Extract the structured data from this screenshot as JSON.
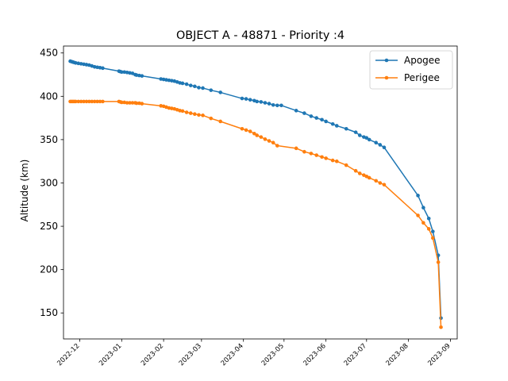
{
  "chart_data": {
    "type": "line",
    "title": "OBJECT A - 48871 - Priority :4",
    "xlabel": "",
    "ylabel": "Altitude (km)",
    "xlim": [
      "2022-11-19",
      "2023-09-06"
    ],
    "ylim": [
      120,
      458
    ],
    "x_ticks": [
      "2022-12",
      "2023-01",
      "2023-02",
      "2023-03",
      "2023-04",
      "2023-05",
      "2023-06",
      "2023-07",
      "2023-08",
      "2023-09"
    ],
    "y_ticks": [
      150,
      200,
      250,
      300,
      350,
      400,
      450
    ],
    "grid": false,
    "legend_position": "top-right",
    "series": [
      {
        "name": "Apogee",
        "color": "#1f77b4",
        "points": [
          [
            "2022-11-24",
            440.5
          ],
          [
            "2022-11-25",
            440
          ],
          [
            "2022-11-26",
            439.5
          ],
          [
            "2022-11-27",
            439
          ],
          [
            "2022-11-28",
            438.5
          ],
          [
            "2022-11-30",
            438
          ],
          [
            "2022-12-02",
            437.5
          ],
          [
            "2022-12-04",
            437
          ],
          [
            "2022-12-06",
            436.5
          ],
          [
            "2022-12-08",
            436
          ],
          [
            "2022-12-10",
            435
          ],
          [
            "2022-12-12",
            434
          ],
          [
            "2022-12-14",
            433.5
          ],
          [
            "2022-12-16",
            433
          ],
          [
            "2022-12-18",
            432.5
          ],
          [
            "2022-12-30",
            429
          ],
          [
            "2022-12-31",
            428.5
          ],
          [
            "2023-01-01",
            428
          ],
          [
            "2023-01-03",
            428
          ],
          [
            "2023-01-05",
            427.5
          ],
          [
            "2023-01-07",
            427
          ],
          [
            "2023-01-09",
            426.5
          ],
          [
            "2023-01-11",
            425
          ],
          [
            "2023-01-12",
            424.5
          ],
          [
            "2023-01-14",
            424
          ],
          [
            "2023-01-16",
            423.5
          ],
          [
            "2023-01-30",
            420
          ],
          [
            "2023-02-01",
            419.5
          ],
          [
            "2023-02-03",
            419
          ],
          [
            "2023-02-05",
            418.5
          ],
          [
            "2023-02-07",
            418
          ],
          [
            "2023-02-09",
            417.5
          ],
          [
            "2023-02-11",
            416.5
          ],
          [
            "2023-02-13",
            415.5
          ],
          [
            "2023-02-15",
            415
          ],
          [
            "2023-02-18",
            414
          ],
          [
            "2023-02-21",
            412.5
          ],
          [
            "2023-02-24",
            411.5
          ],
          [
            "2023-02-27",
            410
          ],
          [
            "2023-03-02",
            409.5
          ],
          [
            "2023-03-08",
            407
          ],
          [
            "2023-03-15",
            404.5
          ],
          [
            "2023-03-31",
            397.5
          ],
          [
            "2023-04-03",
            397
          ],
          [
            "2023-04-06",
            396
          ],
          [
            "2023-04-09",
            395
          ],
          [
            "2023-04-11",
            394
          ],
          [
            "2023-04-14",
            393.5
          ],
          [
            "2023-04-17",
            392.5
          ],
          [
            "2023-04-20",
            391.5
          ],
          [
            "2023-04-23",
            390
          ],
          [
            "2023-04-26",
            389.5
          ],
          [
            "2023-04-29",
            389.5
          ],
          [
            "2023-05-10",
            383.5
          ],
          [
            "2023-05-16",
            380.5
          ],
          [
            "2023-05-21",
            377
          ],
          [
            "2023-05-25",
            375
          ],
          [
            "2023-05-29",
            373
          ],
          [
            "2023-06-01",
            371
          ],
          [
            "2023-06-06",
            368
          ],
          [
            "2023-06-09",
            366
          ],
          [
            "2023-06-16",
            362.5
          ],
          [
            "2023-06-23",
            358.5
          ],
          [
            "2023-06-26",
            355
          ],
          [
            "2023-06-29",
            353
          ],
          [
            "2023-07-01",
            352
          ],
          [
            "2023-07-03",
            350
          ],
          [
            "2023-07-08",
            346.5
          ],
          [
            "2023-07-11",
            344
          ],
          [
            "2023-07-14",
            341
          ],
          [
            "2023-08-08",
            285.5
          ],
          [
            "2023-08-12",
            271.5
          ],
          [
            "2023-08-16",
            259
          ],
          [
            "2023-08-19",
            244
          ],
          [
            "2023-08-23",
            216.5
          ],
          [
            "2023-08-25",
            144
          ]
        ]
      },
      {
        "name": "Perigee",
        "color": "#ff7f0e",
        "points": [
          [
            "2022-11-24",
            394
          ],
          [
            "2022-11-25",
            394
          ],
          [
            "2022-11-26",
            394
          ],
          [
            "2022-11-27",
            394
          ],
          [
            "2022-11-28",
            394
          ],
          [
            "2022-11-30",
            394
          ],
          [
            "2022-12-02",
            394
          ],
          [
            "2022-12-04",
            394
          ],
          [
            "2022-12-06",
            394
          ],
          [
            "2022-12-08",
            394
          ],
          [
            "2022-12-10",
            394
          ],
          [
            "2022-12-12",
            394
          ],
          [
            "2022-12-14",
            394
          ],
          [
            "2022-12-16",
            394
          ],
          [
            "2022-12-18",
            394
          ],
          [
            "2022-12-30",
            394
          ],
          [
            "2022-12-31",
            393.5
          ],
          [
            "2023-01-01",
            393
          ],
          [
            "2023-01-03",
            393
          ],
          [
            "2023-01-05",
            392.5
          ],
          [
            "2023-01-07",
            392.5
          ],
          [
            "2023-01-09",
            392.5
          ],
          [
            "2023-01-11",
            392.5
          ],
          [
            "2023-01-12",
            392
          ],
          [
            "2023-01-14",
            392
          ],
          [
            "2023-01-16",
            391.5
          ],
          [
            "2023-01-30",
            389
          ],
          [
            "2023-02-01",
            388.5
          ],
          [
            "2023-02-03",
            387.5
          ],
          [
            "2023-02-05",
            386.5
          ],
          [
            "2023-02-07",
            386
          ],
          [
            "2023-02-09",
            385.5
          ],
          [
            "2023-02-11",
            384.5
          ],
          [
            "2023-02-13",
            383.5
          ],
          [
            "2023-02-15",
            383
          ],
          [
            "2023-02-18",
            381.5
          ],
          [
            "2023-02-21",
            380.5
          ],
          [
            "2023-02-24",
            379.5
          ],
          [
            "2023-02-27",
            378.5
          ],
          [
            "2023-03-02",
            378
          ],
          [
            "2023-03-08",
            374.5
          ],
          [
            "2023-03-15",
            371
          ],
          [
            "2023-03-31",
            362.5
          ],
          [
            "2023-04-03",
            361
          ],
          [
            "2023-04-06",
            359.5
          ],
          [
            "2023-04-09",
            357
          ],
          [
            "2023-04-11",
            355
          ],
          [
            "2023-04-14",
            353
          ],
          [
            "2023-04-17",
            350.5
          ],
          [
            "2023-04-20",
            348.5
          ],
          [
            "2023-04-23",
            346.5
          ],
          [
            "2023-04-26",
            343
          ],
          [
            "2023-05-10",
            340
          ],
          [
            "2023-05-16",
            336
          ],
          [
            "2023-05-21",
            334
          ],
          [
            "2023-05-25",
            332
          ],
          [
            "2023-05-29",
            330
          ],
          [
            "2023-06-01",
            328.5
          ],
          [
            "2023-06-06",
            326
          ],
          [
            "2023-06-09",
            325
          ],
          [
            "2023-06-16",
            320.5
          ],
          [
            "2023-06-23",
            314
          ],
          [
            "2023-06-26",
            311
          ],
          [
            "2023-06-29",
            309
          ],
          [
            "2023-07-01",
            307.5
          ],
          [
            "2023-07-03",
            306
          ],
          [
            "2023-07-08",
            302.5
          ],
          [
            "2023-07-11",
            300
          ],
          [
            "2023-07-14",
            298
          ],
          [
            "2023-08-08",
            262.5
          ],
          [
            "2023-08-12",
            254
          ],
          [
            "2023-08-16",
            247
          ],
          [
            "2023-08-19",
            236.5
          ],
          [
            "2023-08-23",
            208.5
          ],
          [
            "2023-08-25",
            133.5
          ]
        ]
      }
    ]
  }
}
